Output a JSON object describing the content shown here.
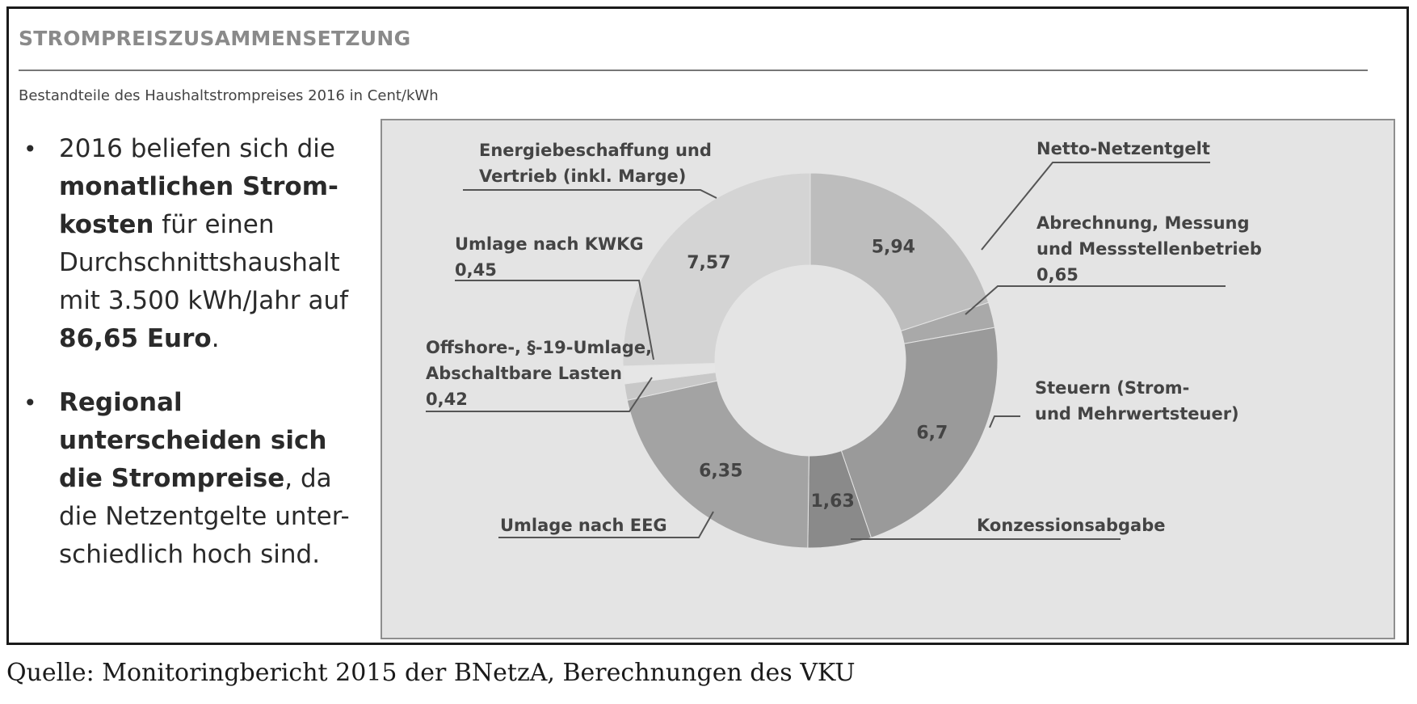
{
  "header": {
    "title": "STROMPREISZUSAMMENSETZUNG",
    "subtitle": "Bestandteile des Haushaltstrompreises 2016 in Cent/kWh"
  },
  "bullets": [
    {
      "runs": [
        {
          "text": "2016 beliefen sich die ",
          "bold": false
        },
        {
          "text": "monatlichen Strom-\nkosten",
          "bold": true
        },
        {
          "text": " für einen Durchschnittshaushalt mit 3.500 kWh/Jahr auf ",
          "bold": false
        },
        {
          "text": "86,65 Euro",
          "bold": true
        },
        {
          "text": ".",
          "bold": false
        }
      ]
    },
    {
      "runs": [
        {
          "text": "Regional unterscheiden sich die Strompreise",
          "bold": true
        },
        {
          "text": ", da die Netzentgelte unter-\nschiedlich hoch sind.",
          "bold": false
        }
      ]
    }
  ],
  "chart_data": {
    "type": "pie",
    "donut": true,
    "slices": [
      {
        "label": "Netto-Netzentgelt",
        "value": 5.94,
        "value_label": "5,94",
        "color": "#bdbdbd"
      },
      {
        "label": "Abrechnung, Messung und Messstellenbetrieb",
        "value": 0.65,
        "value_label": "0,65",
        "color": "#a9a9a9"
      },
      {
        "label": "Steuern (Strom- und Mehrwertsteuer)",
        "value": 6.7,
        "value_label": "6,7",
        "color": "#9a9a9a"
      },
      {
        "label": "Konzessionsabgabe",
        "value": 1.63,
        "value_label": "1,63",
        "color": "#8a8a8a"
      },
      {
        "label": "Umlage nach EEG",
        "value": 6.35,
        "value_label": "6,35",
        "color": "#a3a3a3"
      },
      {
        "label": "Offshore-, §-19-Umlage, Abschaltbare Lasten",
        "value": 0.42,
        "value_label": "0,42",
        "color": "#c8c8c8"
      },
      {
        "label": "Umlage nach KWKG",
        "value": 0.45,
        "value_label": "0,45",
        "color": "#e6e6e6"
      },
      {
        "label": "Energiebeschaffung und Vertrieb (inkl. Marge)",
        "value": 7.57,
        "value_label": "7,57",
        "color": "#d4d4d4"
      }
    ],
    "legend": "callout labels"
  },
  "labels": {
    "netz": [
      "Netto-Netzentgelt"
    ],
    "abrechnung": [
      "Abrechnung, Messung",
      "und Messstellenbetrieb",
      "0,65"
    ],
    "steuern": [
      "Steuern (Strom-",
      "und Mehrwertsteuer)"
    ],
    "konzession": [
      "Konzessionsabgabe"
    ],
    "eeg": [
      "Umlage nach EEG"
    ],
    "offshore": [
      "Offshore-, §-19-Umlage,",
      "Abschaltbare Lasten",
      "0,42"
    ],
    "kwkg": [
      "Umlage nach KWKG",
      "0,45"
    ],
    "energie": [
      "Energiebeschaffung und",
      "Vertrieb (inkl. Marge)"
    ]
  },
  "source": "Quelle: Monitoringbericht 2015 der BNetzA, Berechnungen des VKU"
}
